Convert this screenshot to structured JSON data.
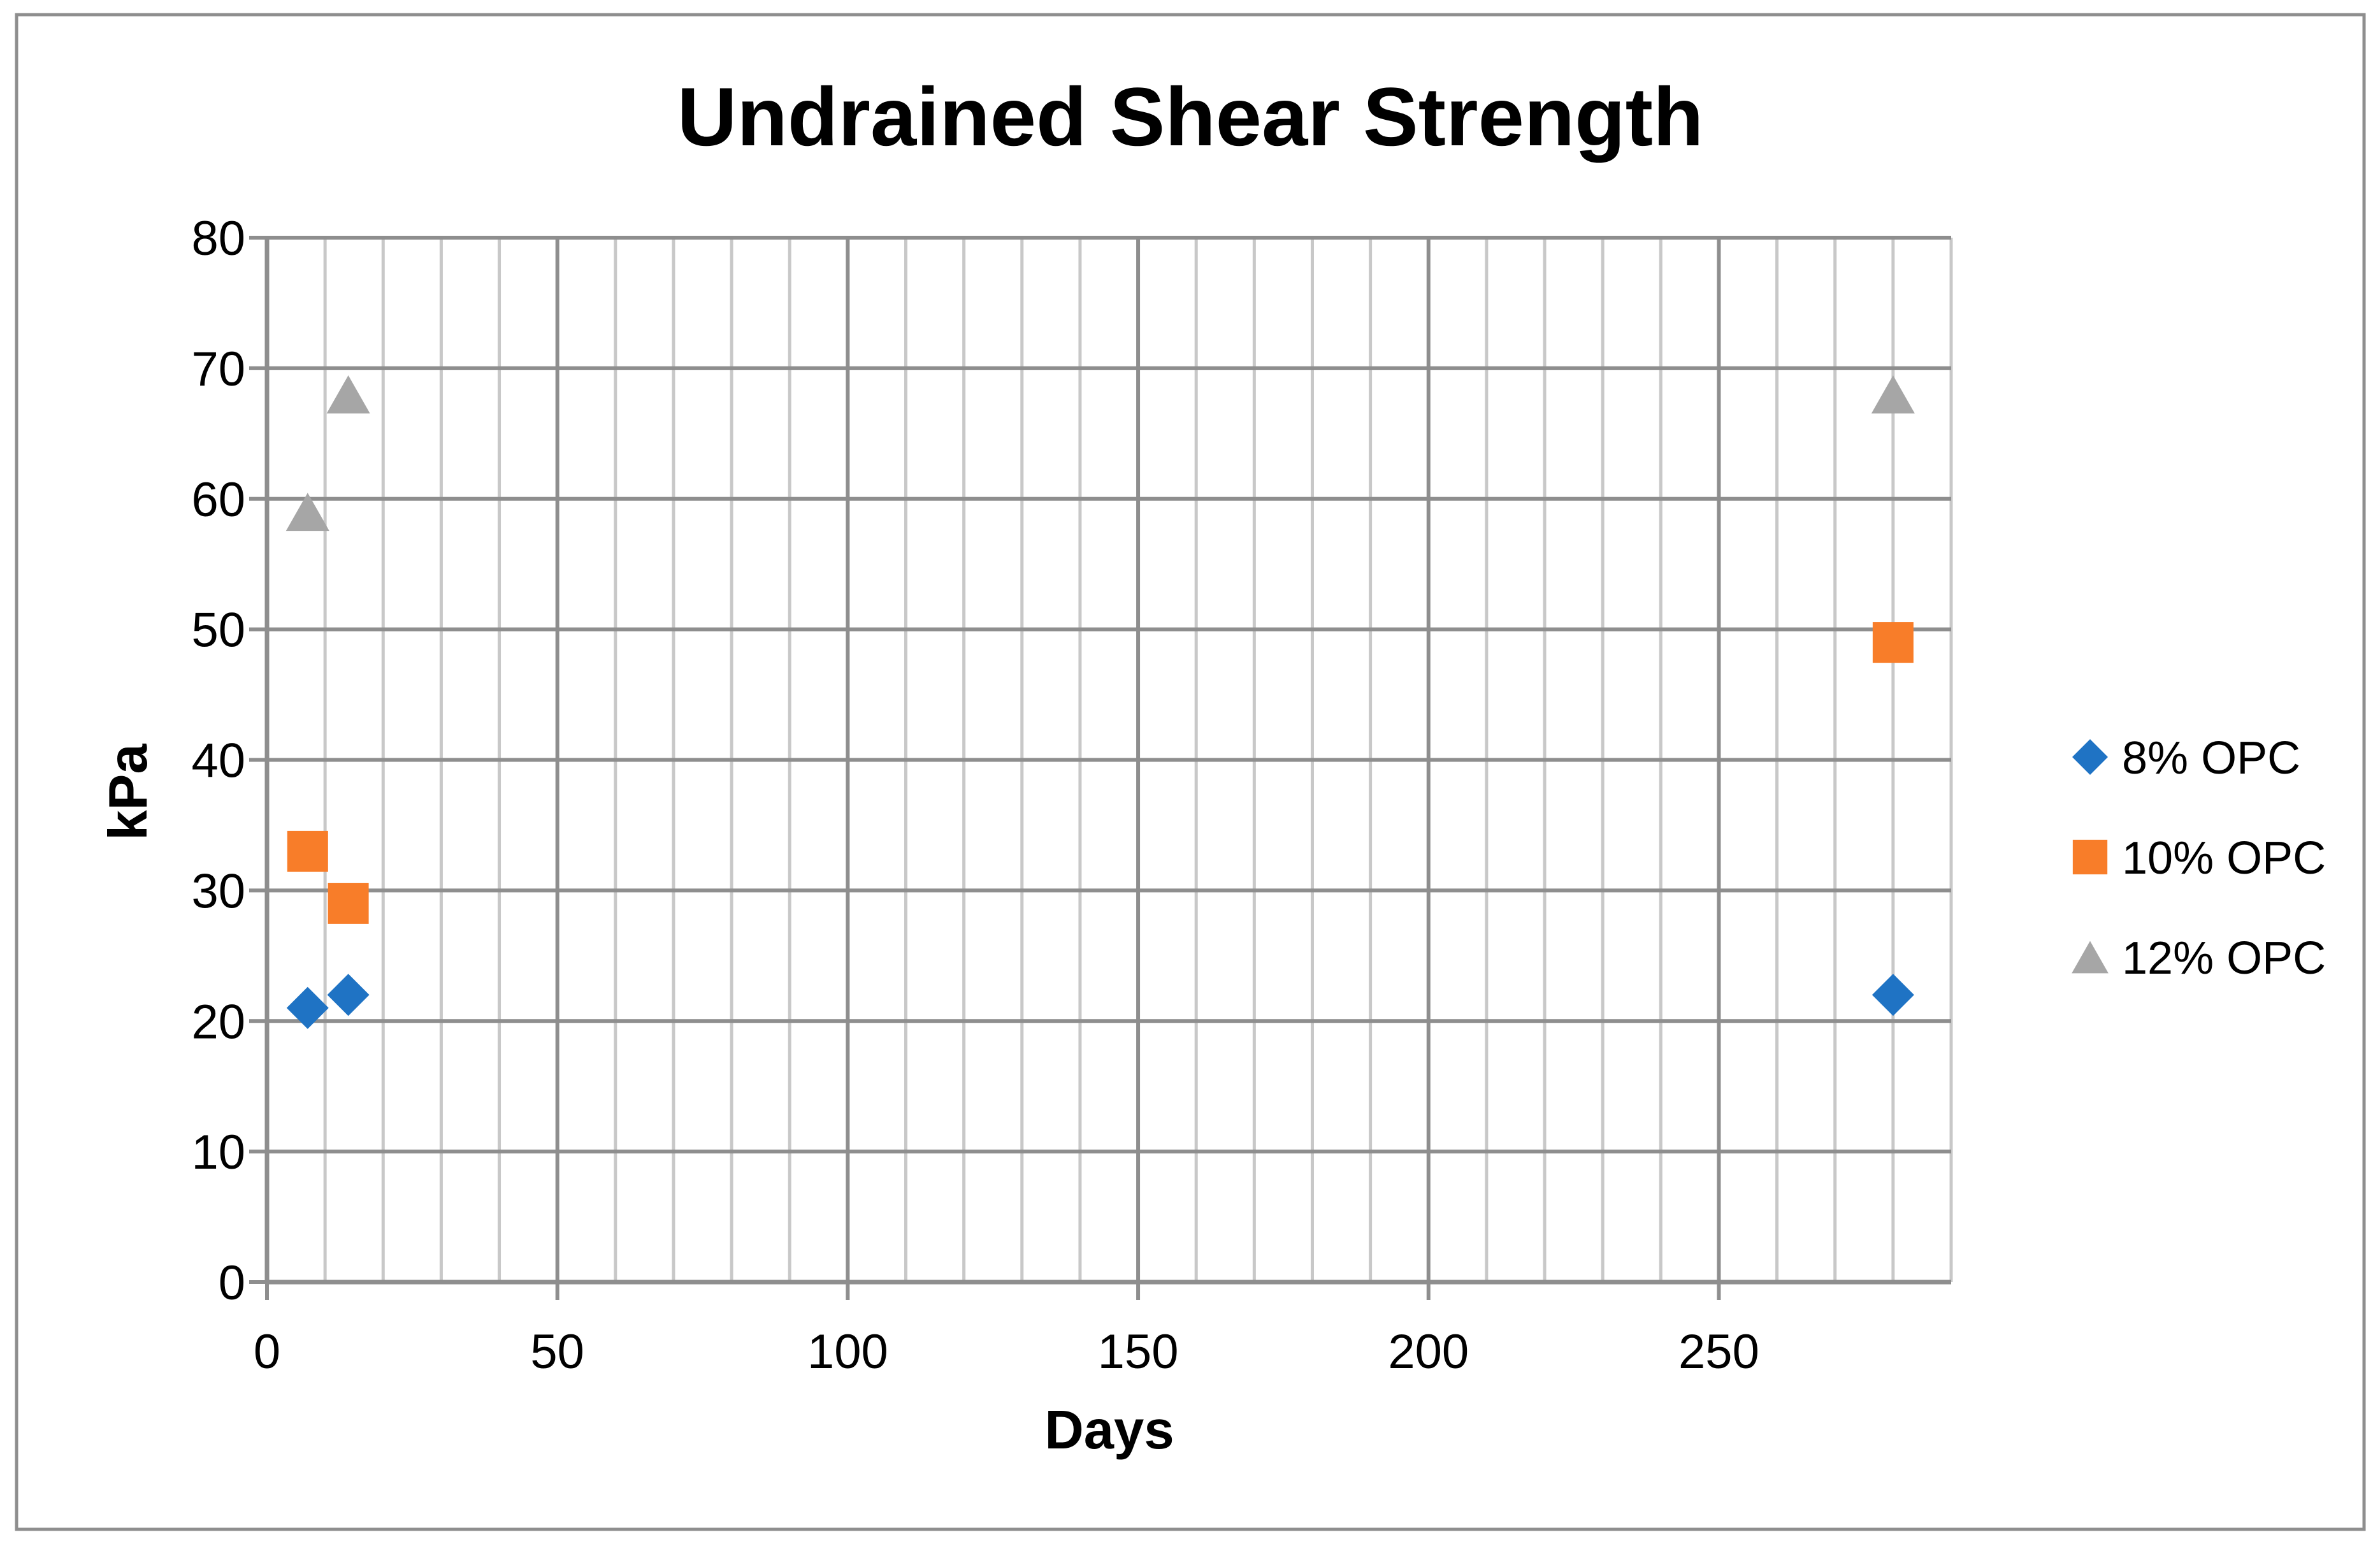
{
  "chart_data": {
    "type": "scatter",
    "title": "Undrained Shear Strength",
    "xlabel": "Days",
    "ylabel": "kPa",
    "xlim": [
      0,
      290
    ],
    "ylim": [
      0,
      80
    ],
    "x_major_ticks": [
      0,
      50,
      100,
      150,
      200,
      250
    ],
    "x_minor_step": 10,
    "x_major_step": 50,
    "y_ticks": [
      0,
      10,
      20,
      30,
      40,
      50,
      60,
      70,
      80
    ],
    "grid": "on",
    "legend_position": "right",
    "series": [
      {
        "name": "8% OPC",
        "marker": "diamond",
        "color": "#1F73C4",
        "points": [
          {
            "x": 7,
            "y": 21
          },
          {
            "x": 14,
            "y": 22
          },
          {
            "x": 280,
            "y": 22
          }
        ]
      },
      {
        "name": "10% OPC",
        "marker": "square",
        "color": "#F87D29",
        "points": [
          {
            "x": 7,
            "y": 33
          },
          {
            "x": 14,
            "y": 29
          },
          {
            "x": 280,
            "y": 49
          }
        ]
      },
      {
        "name": "12% OPC",
        "marker": "triangle",
        "color": "#A6A6A6",
        "points": [
          {
            "x": 7,
            "y": 59
          },
          {
            "x": 14,
            "y": 68
          },
          {
            "x": 280,
            "y": 68
          }
        ]
      }
    ],
    "colors": {
      "background": "#FFFFFF",
      "chart_border": "#8E8E8E",
      "major_grid": "#8E8E8E",
      "minor_grid": "#C8C8C8",
      "axis": "#8E8E8E",
      "text": "#000000"
    }
  }
}
